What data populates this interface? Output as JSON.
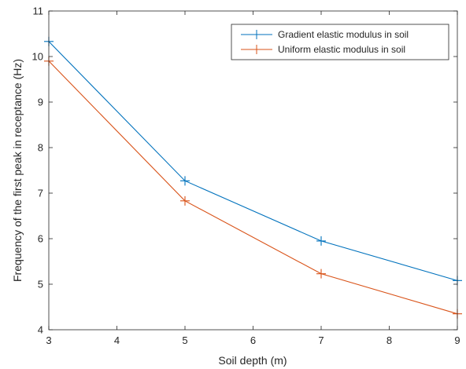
{
  "chart_data": {
    "type": "line",
    "title": "",
    "xlabel": "Soil depth (m)",
    "ylabel": "Frequency of the first peak in receptance (Hz)",
    "xlim": [
      3,
      9
    ],
    "ylim": [
      4,
      11
    ],
    "xticks": [
      3,
      4,
      5,
      6,
      7,
      8,
      9
    ],
    "yticks": [
      4,
      5,
      6,
      7,
      8,
      9,
      10,
      11
    ],
    "grid": false,
    "legend_position": "top-right",
    "marker": "plus",
    "x": [
      3,
      5,
      7,
      9
    ],
    "series": [
      {
        "name": "Gradient elastic modulus in soil",
        "color": "#0072BD",
        "values": [
          10.33,
          7.27,
          5.95,
          5.08
        ]
      },
      {
        "name": "Uniform elastic modulus in soil",
        "color": "#D95319",
        "values": [
          9.9,
          6.83,
          5.23,
          4.35
        ]
      }
    ]
  }
}
